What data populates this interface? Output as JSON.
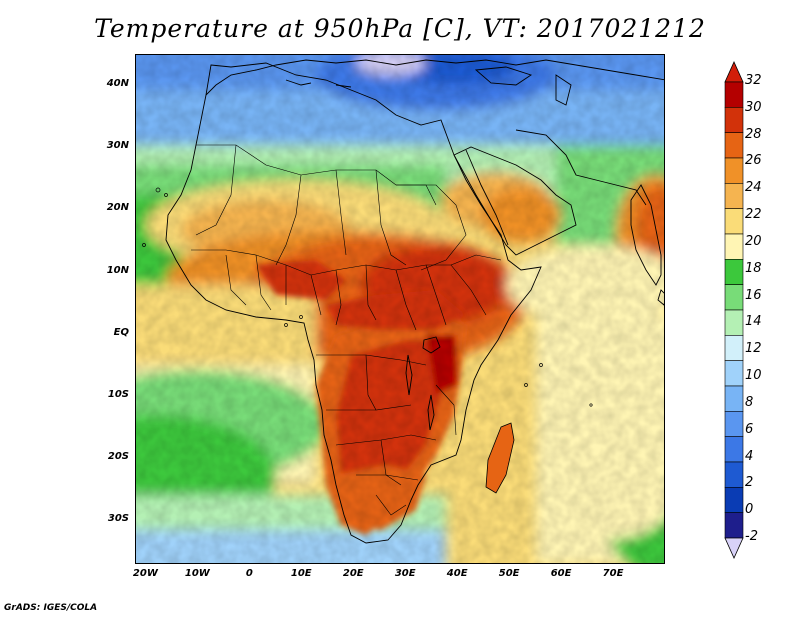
{
  "title": "Temperature at 950hPa [C], VT: 2017021212",
  "credit": "GrADS: IGES/COLA",
  "map": {
    "lon_range": [
      -22,
      80
    ],
    "lat_range": [
      -37,
      45
    ],
    "lat_labels": [
      {
        "lat": 40,
        "text": "40N"
      },
      {
        "lat": 30,
        "text": "30N"
      },
      {
        "lat": 20,
        "text": "20N"
      },
      {
        "lat": 10,
        "text": "10N"
      },
      {
        "lat": 0,
        "text": "EQ"
      },
      {
        "lat": -10,
        "text": "10S"
      },
      {
        "lat": -20,
        "text": "20S"
      },
      {
        "lat": -30,
        "text": "30S"
      }
    ],
    "lon_labels": [
      {
        "lon": -20,
        "text": "20W"
      },
      {
        "lon": -10,
        "text": "10W"
      },
      {
        "lon": 0,
        "text": "0"
      },
      {
        "lon": 10,
        "text": "10E"
      },
      {
        "lon": 20,
        "text": "20E"
      },
      {
        "lon": 30,
        "text": "30E"
      },
      {
        "lon": 40,
        "text": "40E"
      },
      {
        "lon": 50,
        "text": "50E"
      },
      {
        "lon": 60,
        "text": "60E"
      },
      {
        "lon": 70,
        "text": "70E"
      }
    ]
  },
  "colorbar": {
    "unit": "C",
    "levels": [
      -2,
      0,
      2,
      4,
      6,
      8,
      10,
      12,
      14,
      16,
      18,
      20,
      22,
      24,
      26,
      28,
      30,
      32
    ],
    "labels": [
      "-2",
      "0",
      "2",
      "4",
      "6",
      "8",
      "10",
      "12",
      "14",
      "16",
      "18",
      "20",
      "22",
      "24",
      "26",
      "28",
      "30",
      "32"
    ],
    "colors": [
      "#1e1e8c",
      "#0a3cb4",
      "#1e5ad2",
      "#3c78e6",
      "#5a96f0",
      "#78b4f5",
      "#a0d2fa",
      "#d2f0fa",
      "#b4f0b4",
      "#78dc78",
      "#3cc83c",
      "#fff5b4",
      "#fadc78",
      "#f5b450",
      "#f09128",
      "#e66414",
      "#d2320a",
      "#b40000"
    ],
    "under_color": "#d8d2f8",
    "over_color": "#d21e0a"
  }
}
